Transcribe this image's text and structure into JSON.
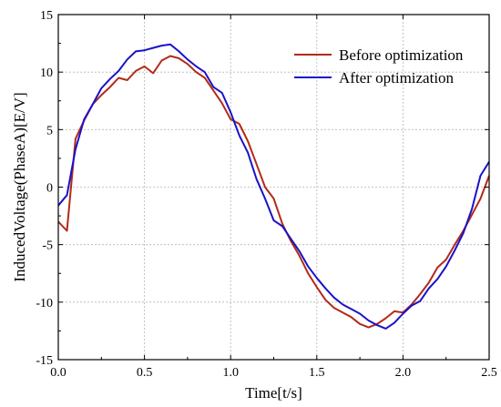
{
  "chart_data": {
    "type": "line",
    "title": "",
    "xlabel": "Time[t/s]",
    "ylabel": "InducedVoltage(PhaseA)[E/V]",
    "xlim": [
      0.0,
      2.5
    ],
    "ylim": [
      -15,
      15
    ],
    "x_ticks": [
      0.0,
      0.5,
      1.0,
      1.5,
      2.0,
      2.5
    ],
    "x_tick_labels": [
      "0.0",
      "0.5",
      "1.0",
      "1.5",
      "2.0",
      "2.5"
    ],
    "y_ticks": [
      -15,
      -10,
      -5,
      0,
      5,
      10,
      15
    ],
    "y_tick_labels": [
      "-15",
      "-10",
      "-5",
      "0",
      "5",
      "10",
      "15"
    ],
    "grid": true,
    "legend_position": "top-right",
    "series": [
      {
        "name": "Before optimization",
        "color": "#b22a18",
        "x": [
          0.0,
          0.05,
          0.1,
          0.15,
          0.2,
          0.25,
          0.3,
          0.35,
          0.4,
          0.45,
          0.5,
          0.55,
          0.6,
          0.65,
          0.7,
          0.75,
          0.8,
          0.85,
          0.9,
          0.95,
          1.0,
          1.05,
          1.1,
          1.15,
          1.2,
          1.25,
          1.3,
          1.35,
          1.4,
          1.45,
          1.5,
          1.55,
          1.6,
          1.65,
          1.7,
          1.75,
          1.8,
          1.85,
          1.9,
          1.95,
          2.0,
          2.05,
          2.1,
          2.15,
          2.2,
          2.25,
          2.3,
          2.35,
          2.4,
          2.45,
          2.5
        ],
        "y": [
          -3.0,
          -3.8,
          4.2,
          5.8,
          7.2,
          8.0,
          8.7,
          9.5,
          9.3,
          10.1,
          10.5,
          9.9,
          11.0,
          11.4,
          11.2,
          10.7,
          10.0,
          9.5,
          8.4,
          7.3,
          5.9,
          5.5,
          4.0,
          2.0,
          0.0,
          -1.0,
          -3.2,
          -4.7,
          -6.0,
          -7.5,
          -8.7,
          -9.8,
          -10.5,
          -10.9,
          -11.3,
          -11.9,
          -12.2,
          -11.9,
          -11.4,
          -10.8,
          -10.9,
          -10.2,
          -9.3,
          -8.3,
          -7.0,
          -6.3,
          -5.0,
          -3.8,
          -2.4,
          -1.0,
          1.0
        ]
      },
      {
        "name": "After optimization",
        "color": "#1a12c9",
        "x": [
          0.0,
          0.05,
          0.1,
          0.15,
          0.2,
          0.25,
          0.3,
          0.35,
          0.4,
          0.45,
          0.5,
          0.55,
          0.6,
          0.65,
          0.7,
          0.75,
          0.8,
          0.85,
          0.9,
          0.95,
          1.0,
          1.05,
          1.1,
          1.15,
          1.2,
          1.25,
          1.3,
          1.35,
          1.4,
          1.45,
          1.5,
          1.55,
          1.6,
          1.65,
          1.7,
          1.75,
          1.8,
          1.85,
          1.9,
          1.95,
          2.0,
          2.05,
          2.1,
          2.15,
          2.2,
          2.25,
          2.3,
          2.35,
          2.4,
          2.45,
          2.5
        ],
        "y": [
          -1.6,
          -0.7,
          3.3,
          5.9,
          7.2,
          8.6,
          9.4,
          10.1,
          11.1,
          11.8,
          11.9,
          12.1,
          12.3,
          12.4,
          11.8,
          11.1,
          10.5,
          10.0,
          8.7,
          8.2,
          6.5,
          4.5,
          3.0,
          0.7,
          -1.0,
          -2.9,
          -3.4,
          -4.5,
          -5.6,
          -6.9,
          -7.9,
          -8.8,
          -9.6,
          -10.2,
          -10.6,
          -11.0,
          -11.6,
          -12.0,
          -12.3,
          -11.8,
          -11.0,
          -10.3,
          -9.9,
          -8.8,
          -8.0,
          -6.9,
          -5.5,
          -4.0,
          -1.9,
          1.0,
          2.2
        ]
      }
    ]
  }
}
